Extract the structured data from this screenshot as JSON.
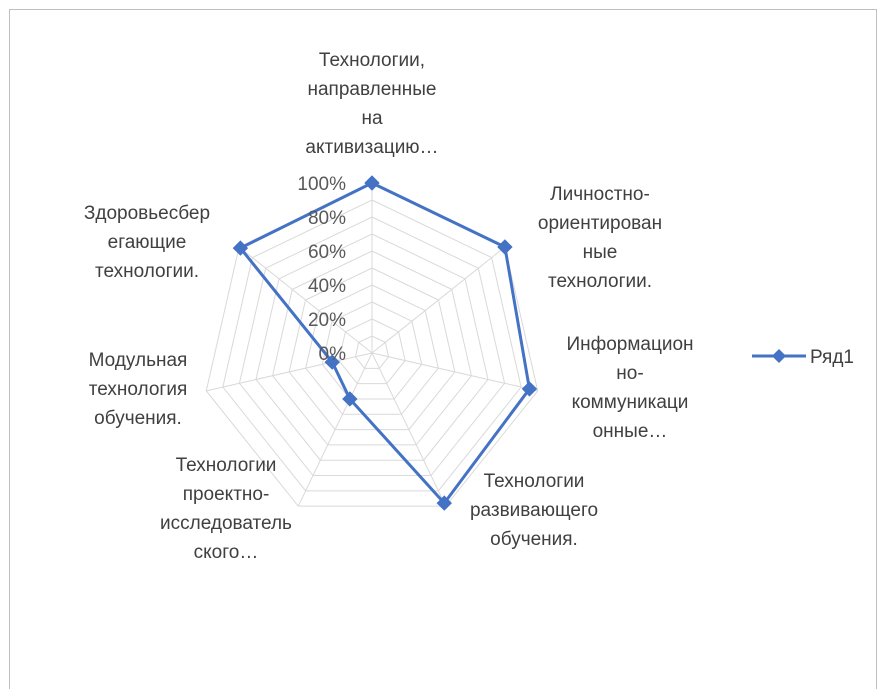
{
  "chart_data": {
    "type": "radar",
    "categories": [
      "Технологии, направленные на активизацию…",
      "Личностно-ориентированные технологии.",
      "Информационно-коммуникационные…",
      "Технологии развивающего обучения.",
      "Технологии проектно-исследовательского…",
      "Модульная технология обучения.",
      "Здоровьесберегающие технологии."
    ],
    "category_label_lines": [
      [
        "Технологии,",
        "направленные",
        "на",
        "активизацию…"
      ],
      [
        "Личностно-",
        "ориентирован",
        "ные",
        "технологии."
      ],
      [
        "Информацион",
        "но-",
        "коммуникаци",
        "онные…"
      ],
      [
        "Технологии",
        "развивающего",
        "обучения."
      ],
      [
        "Технологии",
        "проектно-",
        "исследователь",
        "ского…"
      ],
      [
        "Модульная",
        "технология",
        "обучения."
      ],
      [
        "Здоровьесбер",
        "егающие",
        "технологии."
      ]
    ],
    "series": [
      {
        "name": "Ряд1",
        "values": [
          1.0,
          1.0,
          0.95,
          0.98,
          0.3,
          0.24,
          0.99
        ]
      }
    ],
    "ylim": [
      0,
      1
    ],
    "tick_labels": [
      "0%",
      "20%",
      "40%",
      "60%",
      "80%",
      "100%"
    ],
    "grid": true,
    "legend": "right",
    "colors": {
      "series": "#4472c4",
      "grid": "#d9d9d9",
      "text": "#404040"
    }
  }
}
